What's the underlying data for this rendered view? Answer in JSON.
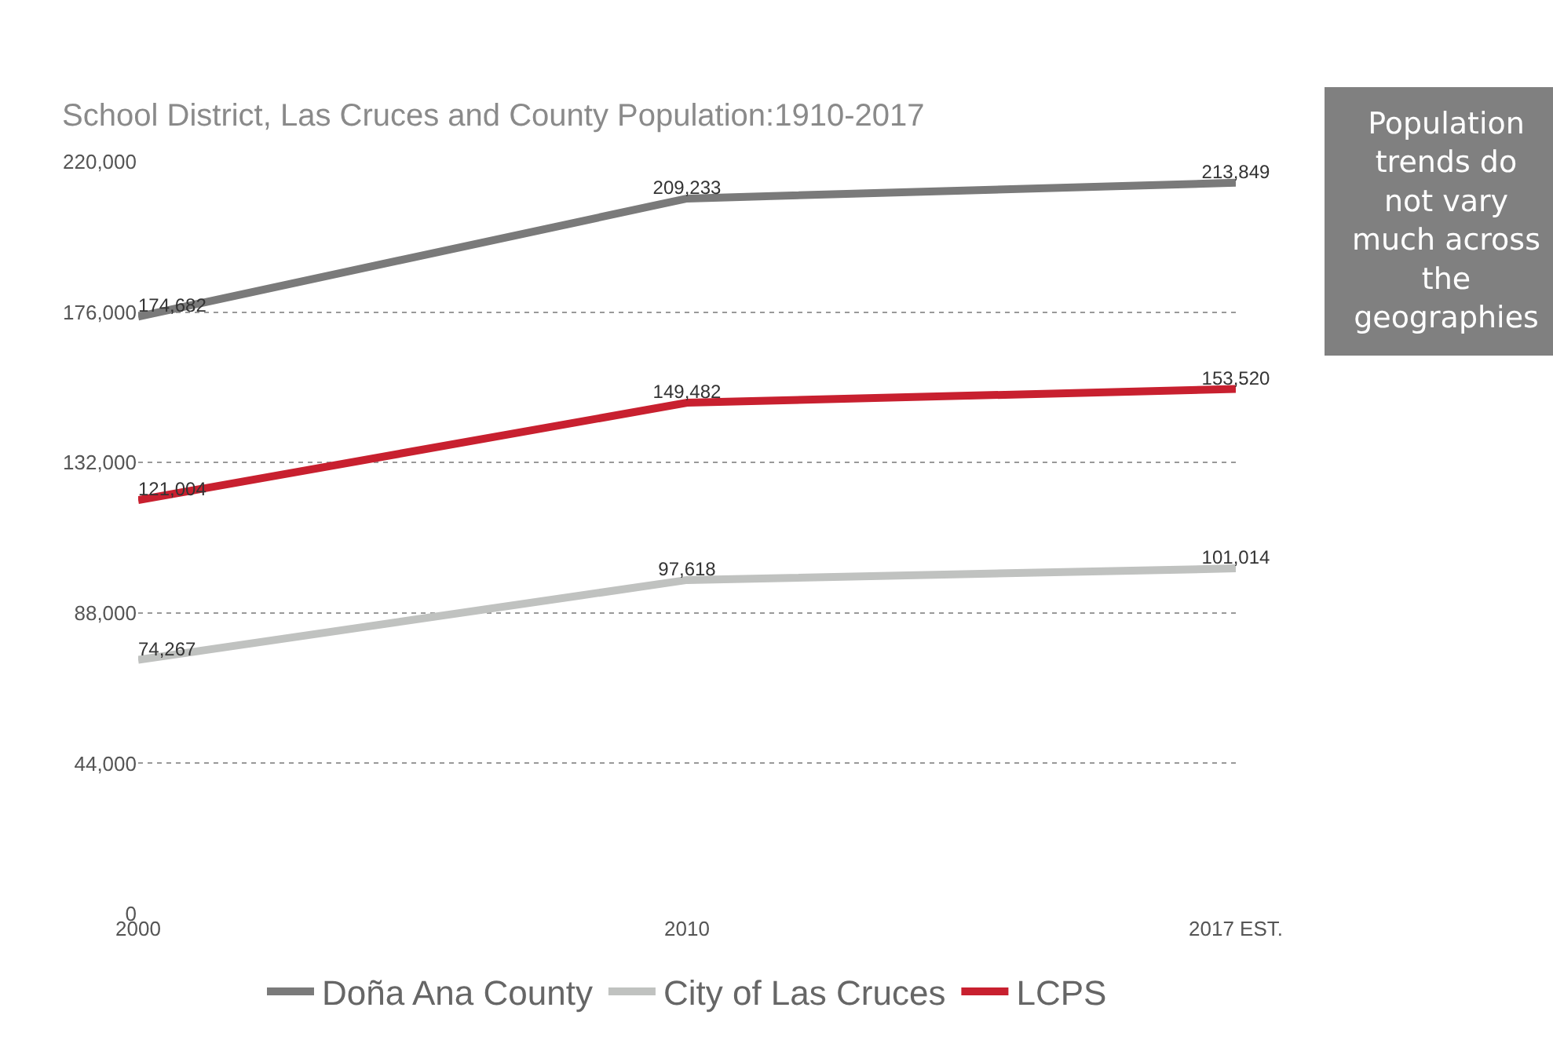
{
  "chart_data": {
    "type": "line",
    "title": "School District, Las Cruces and County Population:1910-2017",
    "categories": [
      "2000",
      "2010",
      "2017 EST."
    ],
    "series": [
      {
        "name": "Doña Ana County",
        "color": "#7a7a7a",
        "values": [
          174682,
          209233,
          213849
        ],
        "value_labels": [
          "174,682",
          "209,233",
          "213,849"
        ]
      },
      {
        "name": "City of Las Cruces",
        "color": "#c0c2c0",
        "values": [
          74267,
          97618,
          101014
        ],
        "value_labels": [
          "74,267",
          "97,618",
          "101,014"
        ]
      },
      {
        "name": "LCPS",
        "color": "#c8202f",
        "values": [
          121004,
          149482,
          153520
        ],
        "value_labels": [
          "121,004",
          "149,482",
          "153,520"
        ]
      }
    ],
    "ylim": [
      0,
      220000
    ],
    "yticks": [
      0,
      {
        "value": 44000,
        "label": "44,000"
      },
      {
        "value": 88000,
        "label": "88,000"
      },
      {
        "value": 132000,
        "label": "132,000"
      },
      {
        "value": 176000,
        "label": "176,000"
      },
      {
        "value": 220000,
        "label": "220,000"
      }
    ],
    "grid": "y",
    "legend": "bottom",
    "annotations": [
      "Population trends do not vary much across the geographies"
    ]
  }
}
